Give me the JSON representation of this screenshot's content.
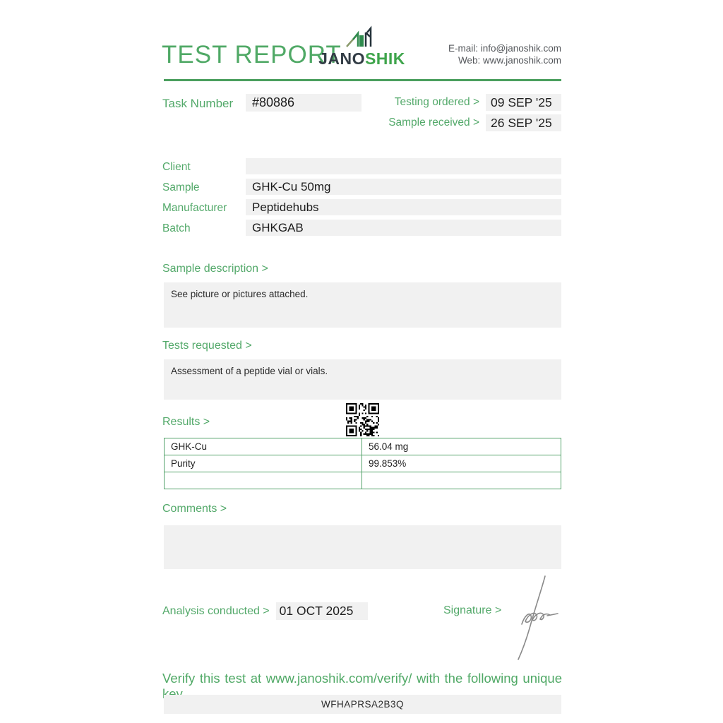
{
  "colors": {
    "accent_green": "#53a96a",
    "title_green": "#50a966",
    "rule_green": "#4b9f5e",
    "table_border_green": "#54a36b",
    "field_gray": "#f1f1f1",
    "text_dark": "#252525"
  },
  "header": {
    "title": "TEST REPORT",
    "logo_dark": "JANO",
    "logo_green": "SHIK",
    "email_line": "E-mail: info@janoshik.com",
    "web_line": "Web: www.janoshik.com"
  },
  "task": {
    "label": "Task Number",
    "number": "#80886"
  },
  "dates": [
    {
      "label": "Testing ordered  >",
      "value": "09 SEP '25"
    },
    {
      "label": "Sample received >",
      "value": "26 SEP '25"
    }
  ],
  "info_rows": [
    {
      "label": "Client",
      "value": ""
    },
    {
      "label": "Sample",
      "value": "GHK-Cu 50mg"
    },
    {
      "label": "Manufacturer",
      "value": "Peptidehubs"
    },
    {
      "label": "Batch",
      "value": "GHKGAB"
    }
  ],
  "sample_description": {
    "label": "Sample description >",
    "text": "See picture or pictures attached."
  },
  "tests_requested": {
    "label": "Tests requested >",
    "text": "Assessment of a peptide vial or vials."
  },
  "results": {
    "label": "Results >",
    "rows": [
      {
        "name": "GHK-Cu",
        "value": "56.04 mg"
      },
      {
        "name": "Purity",
        "value": "99.853%"
      },
      {
        "name": "",
        "value": ""
      }
    ]
  },
  "comments": {
    "label": "Comments >",
    "text": ""
  },
  "analysis": {
    "label": "Analysis conducted >",
    "date": "01 OCT 2025"
  },
  "signature": {
    "label": "Signature >"
  },
  "footer": {
    "verify_text": "Verify this test at www.janoshik.com/verify/ with the following unique key",
    "unique_key": "WFHAPRSA2B3Q"
  }
}
